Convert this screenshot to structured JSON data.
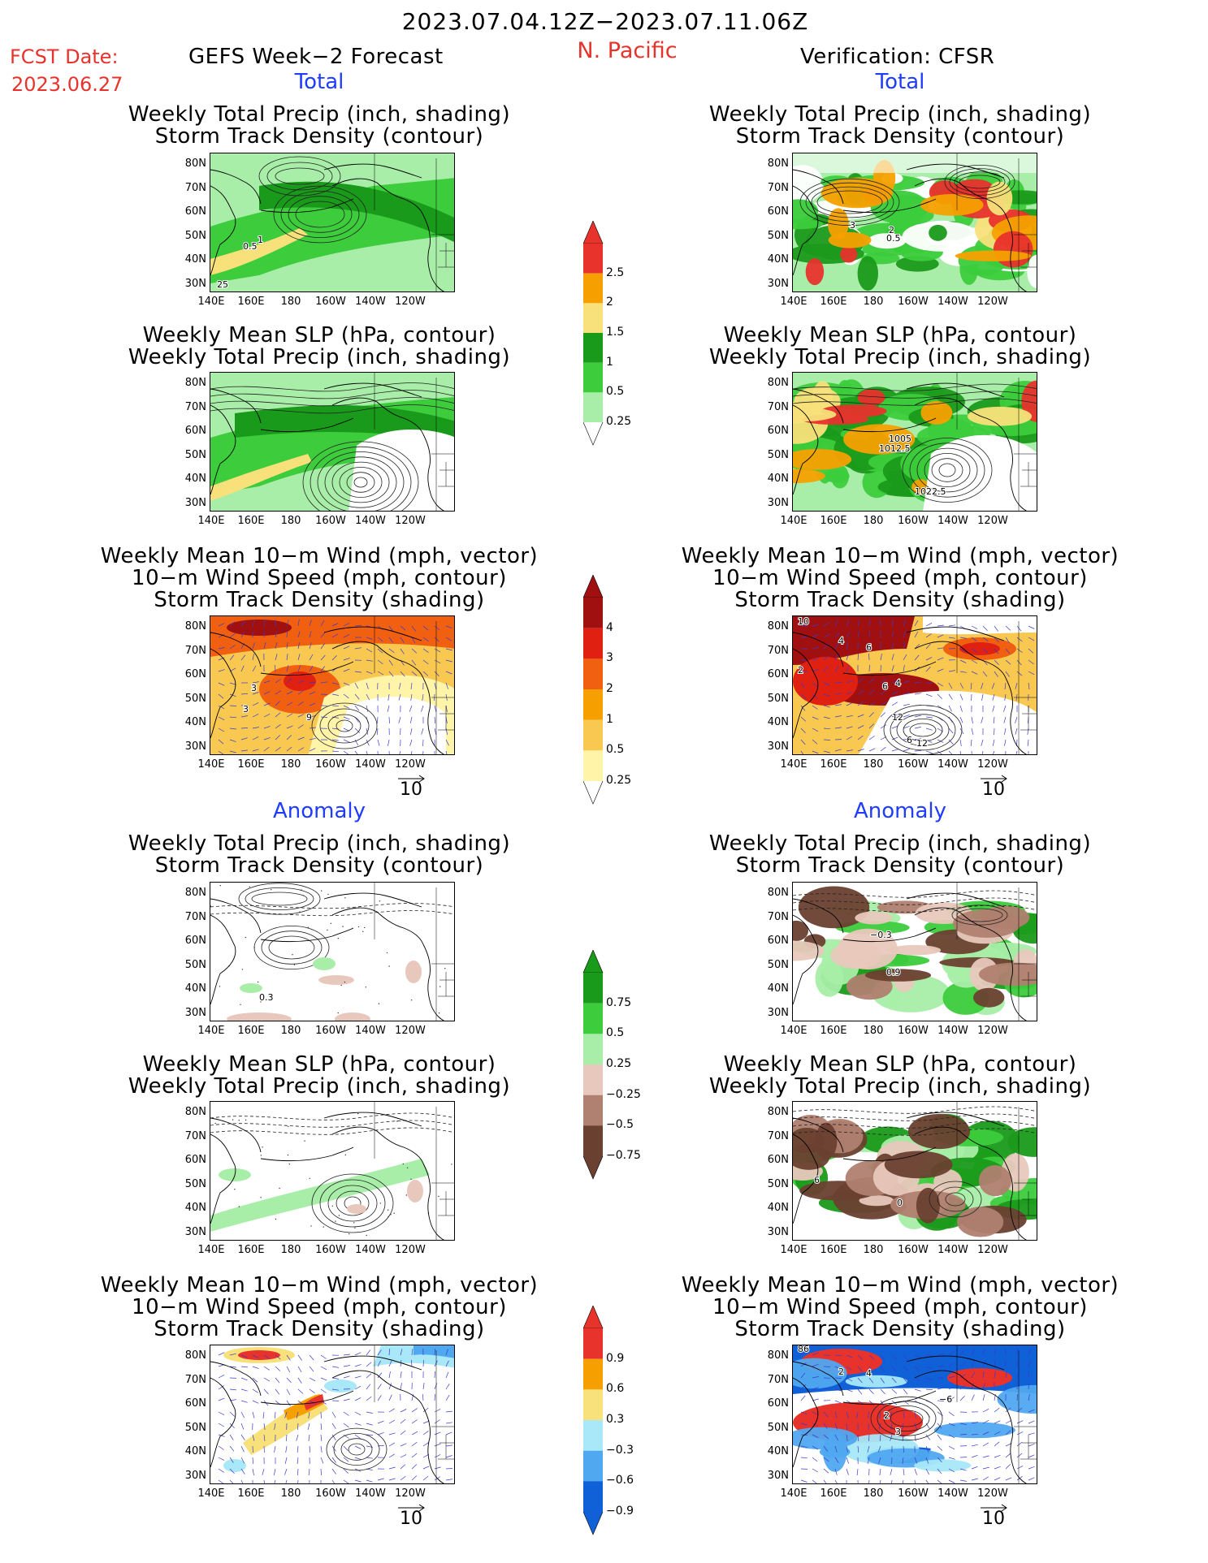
{
  "header": {
    "date_range": "2023.07.04.12Z−2023.07.11.06Z",
    "fcst_label": "FCST Date:",
    "fcst_date": "2023.06.27",
    "left_title": "GEFS Week−2 Forecast",
    "region": "N. Pacific",
    "right_title": "Verification: CFSR"
  },
  "section_labels": {
    "total": "Total",
    "anomaly": "Anomaly"
  },
  "axes": {
    "lat_ticks": [
      "80N",
      "70N",
      "60N",
      "50N",
      "40N",
      "30N"
    ],
    "lon_ticks": [
      "140E",
      "160E",
      "180",
      "160W",
      "140W",
      "120W"
    ]
  },
  "panels": [
    {
      "id": "fc-total-precip",
      "t1": "Weekly Total Precip (inch, shading)",
      "t2": "Storm Track Density (contour)",
      "t3": "",
      "labels": [
        "1",
        "0.5",
        "25"
      ]
    },
    {
      "id": "fc-total-slp",
      "t1": "Weekly Mean SLP (hPa, contour)",
      "t2": "Weekly Total Precip (inch, shading)",
      "t3": "",
      "labels": []
    },
    {
      "id": "fc-total-wind",
      "t1": "Weekly Mean 10−m Wind (mph, vector)",
      "t2": "10−m Wind Speed (mph, contour)",
      "t3": "Storm Track Density (shading)",
      "labels": [
        "3",
        "3",
        "9"
      ]
    },
    {
      "id": "fc-anom-precip",
      "t1": "Weekly Total Precip (inch, shading)",
      "t2": "Storm Track Density (contour)",
      "t3": "",
      "labels": [
        "0.3"
      ]
    },
    {
      "id": "fc-anom-slp",
      "t1": "Weekly Mean SLP (hPa, contour)",
      "t2": "Weekly Total Precip (inch, shading)",
      "t3": "",
      "labels": []
    },
    {
      "id": "fc-anom-wind",
      "t1": "Weekly Mean 10−m Wind (mph, vector)",
      "t2": "10−m Wind Speed (mph, contour)",
      "t3": "Storm Track Density (shading)",
      "labels": []
    },
    {
      "id": "vf-total-precip",
      "t1": "Weekly Total Precip (inch, shading)",
      "t2": "Storm Track Density (contour)",
      "t3": "",
      "labels": [
        "3",
        "2",
        "0.5"
      ]
    },
    {
      "id": "vf-total-slp",
      "t1": "Weekly Mean SLP (hPa, contour)",
      "t2": "Weekly Total Precip (inch, shading)",
      "t3": "",
      "labels": [
        "1005",
        "1012.5",
        "1022.5"
      ]
    },
    {
      "id": "vf-total-wind",
      "t1": "Weekly Mean 10−m Wind (mph, vector)",
      "t2": "10−m Wind Speed (mph, contour)",
      "t3": "Storm Track Density (shading)",
      "labels": [
        "10",
        "4",
        "6",
        "2",
        "6",
        "4",
        "12",
        "6",
        "12"
      ]
    },
    {
      "id": "vf-anom-precip",
      "t1": "Weekly Total Precip (inch, shading)",
      "t2": "Storm Track Density (contour)",
      "t3": "",
      "labels": [
        "−0.3",
        "0.9"
      ]
    },
    {
      "id": "vf-anom-slp",
      "t1": "Weekly Mean SLP (hPa, contour)",
      "t2": "Weekly Total Precip (inch, shading)",
      "t3": "",
      "labels": [
        "6",
        "0"
      ]
    },
    {
      "id": "vf-anom-wind",
      "t1": "Weekly Mean 10−m Wind (mph, vector)",
      "t2": "10−m Wind Speed (mph, contour)",
      "t3": "Storm Track Density (shading)",
      "labels": [
        "86",
        "2",
        "4",
        "2",
        "−6",
        "3"
      ]
    }
  ],
  "vector_ref": "10",
  "colorbars": {
    "precip_total": {
      "labels": [
        "2.5",
        "2",
        "1.5",
        "1",
        "0.5",
        "0.25"
      ],
      "colors": [
        "#e8322c",
        "#f5a000",
        "#f8e07a",
        "#1a9a1a",
        "#3ccc3c",
        "#a8eea8"
      ]
    },
    "storm_total": {
      "labels": [
        "4",
        "3",
        "2",
        "1",
        "0.5",
        "0.25"
      ],
      "colors": [
        "#a01010",
        "#e02010",
        "#f06010",
        "#f5a000",
        "#f8c850",
        "#fff4a8"
      ]
    },
    "precip_anom": {
      "labels": [
        "0.75",
        "0.5",
        "0.25",
        "−0.25",
        "−0.5",
        "−0.75"
      ],
      "colors": [
        "#1a9a1a",
        "#3ccc3c",
        "#a8eea8",
        "#e8c8bc",
        "#b08070",
        "#6a4030"
      ]
    },
    "storm_anom": {
      "labels": [
        "0.9",
        "0.6",
        "0.3",
        "−0.3",
        "−0.6",
        "−0.9"
      ],
      "colors": [
        "#e8322c",
        "#f5a000",
        "#f8e07a",
        "#a8e8f8",
        "#50a8f0",
        "#1060d8"
      ]
    }
  }
}
